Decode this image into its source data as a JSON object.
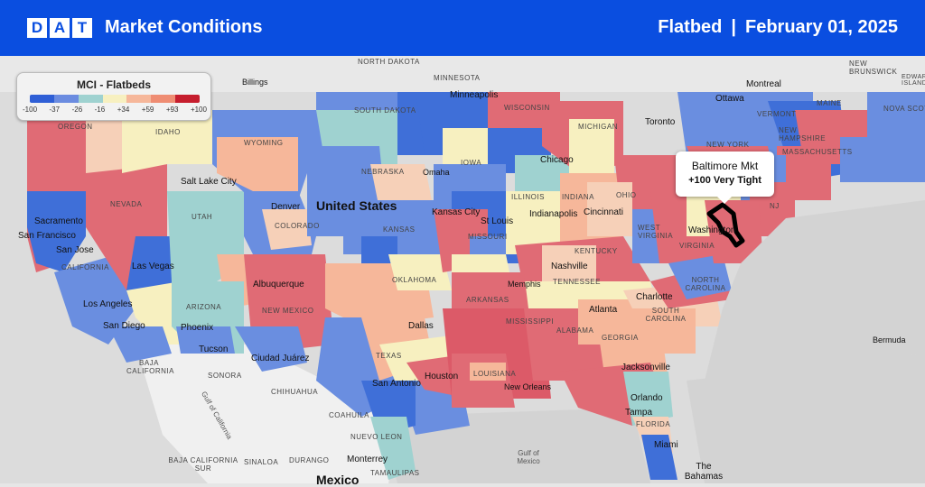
{
  "header": {
    "logo": [
      "D",
      "A",
      "T"
    ],
    "title": "Market Conditions",
    "equipment": "Flatbed",
    "separator": "|",
    "date": "February 01, 2025"
  },
  "legend": {
    "title": "MCI - Flatbeds",
    "colors": [
      "#2f5fd6",
      "#6b8ce0",
      "#9fd2d0",
      "#f7f0c0",
      "#f6b79a",
      "#ef8d73",
      "#c61e2e"
    ],
    "labels": [
      "-100",
      "-37",
      "-26",
      "-16",
      "+34",
      "+59",
      "+93",
      "+100"
    ]
  },
  "callout": {
    "market": "Baltimore Mkt",
    "value": "+100 Very Tight"
  },
  "countries": {
    "us": "United States",
    "mexico": "Mexico"
  },
  "states": {
    "oregon": "OREGON",
    "idaho": "IDAHO",
    "wyoming": "WYOMING",
    "south_dakota": "SOUTH DAKOTA",
    "nebraska": "NEBRASKA",
    "iowa": "IOWA",
    "illinois": "ILLINOIS",
    "indiana": "INDIANA",
    "ohio": "OHIO",
    "wisconsin": "WISCONSIN",
    "michigan": "MICHIGAN",
    "minnesota": "MINNESOTA",
    "nevada": "NEVADA",
    "utah": "UTAH",
    "colorado": "COLORADO",
    "kansas": "KANSAS",
    "missouri": "MISSOURI",
    "kentucky": "KENTUCKY",
    "west_virginia": "WEST VIRGINIA",
    "virginia": "VIRGINIA",
    "california": "CALIFORNIA",
    "arizona": "ARIZONA",
    "new_mexico": "NEW MEXICO",
    "oklahoma": "OKLAHOMA",
    "texas": "TEXAS",
    "arkansas": "ARKANSAS",
    "tennessee": "TENNESSEE",
    "mississippi": "MISSISSIPPI",
    "alabama": "ALABAMA",
    "georgia": "GEORGIA",
    "louisiana": "LOUISIANA",
    "south_carolina": "SOUTH CAROLINA",
    "north_carolina": "NORTH CAROLINA",
    "florida": "FLORIDA",
    "new_york": "NEW YORK",
    "vermont": "VERMONT",
    "new_hampshire": "NEW HAMPSHIRE",
    "maine": "MAINE",
    "massachusetts": "MASSACHUSETTS",
    "nj": "NJ",
    "baja_california": "BAJA CALIFORNIA",
    "sonora": "SONORA",
    "chihuahua": "CHIHUAHUA",
    "coahuila": "COAHUILA",
    "nuevo_leon": "NUEVO LEON",
    "tamaulipas": "TAMAULIPAS",
    "baja_california_sur": "BAJA CALIFORNIA SUR",
    "sinaloa": "SINALOA",
    "durango": "DURANGO",
    "new_brunswick": "NEW BRUNSWICK",
    "nova_scotia": "NOVA SCOTIA",
    "edward_island": "EDWARD ISLAND",
    "north_dakota": "NORTH DAKOTA"
  },
  "cities": {
    "sacramento": "Sacramento",
    "san_francisco": "San Francisco",
    "san_jose": "San Jose",
    "los_angeles": "Los Angeles",
    "san_diego": "San Diego",
    "las_vegas": "Las Vegas",
    "phoenix": "Phoenix",
    "tucson": "Tucson",
    "salt_lake": "Salt Lake City",
    "denver": "Denver",
    "albuquerque": "Albuquerque",
    "ciudad_juarez": "Ciudad Juárez",
    "dallas": "Dallas",
    "houston": "Houston",
    "san_antonio": "San Antonio",
    "kansas_city": "Kansas City",
    "omaha": "Omaha",
    "st_louis": "St Louis",
    "minneapolis": "Minneapolis",
    "chicago": "Chicago",
    "indianapolis": "Indianapolis",
    "cincinnati": "Cincinnati",
    "memphis": "Memphis",
    "nashville": "Nashville",
    "atlanta": "Atlanta",
    "charlotte": "Charlotte",
    "jacksonville": "Jacksonville",
    "orlando": "Orlando",
    "tampa": "Tampa",
    "miami": "Miami",
    "new_orleans": "New Orleans",
    "washington": "Washington",
    "toronto": "Toronto",
    "ottawa": "Ottawa",
    "montreal": "Montreal",
    "billings": "Billings",
    "monterrey": "Monterrey",
    "bermuda": "Bermuda",
    "bahamas": "The Bahamas",
    "gulf_mexico": "Gulf of Mexico",
    "gulf_california": "Gulf of California"
  }
}
